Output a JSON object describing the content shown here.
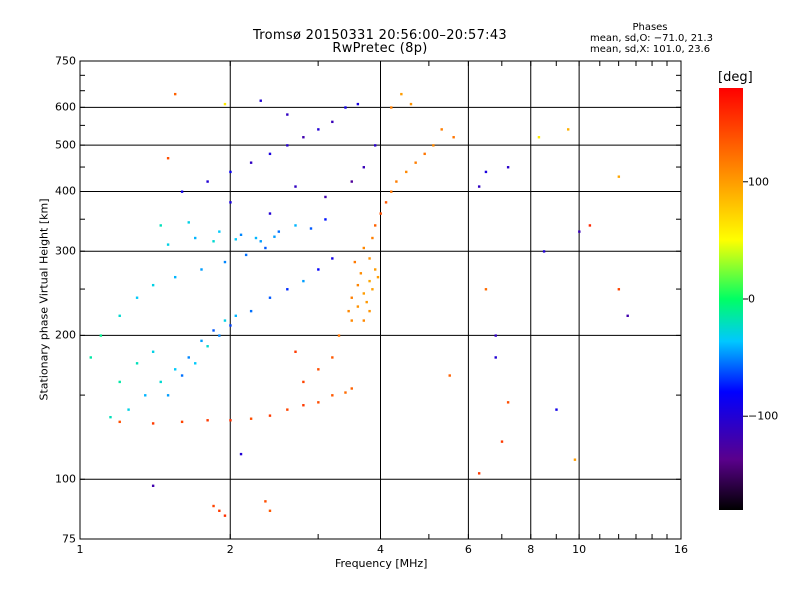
{
  "header": {
    "title_line1": "Tromsø 20150331 20:56:00–20:57:43",
    "title_line2": "RwPretec (8p)",
    "phase_title": "Phases",
    "phase_line1": "mean, sd,O: −71.0, 21.3",
    "phase_line2": "mean, sd,X: 101.0, 23.6"
  },
  "colorbar": {
    "unit_label": "[deg]",
    "tick_labels": [
      "100",
      "0",
      "−100"
    ],
    "tick_values": [
      100,
      0,
      -100
    ],
    "range": [
      -180,
      180
    ]
  },
  "chart_data": {
    "type": "scatter",
    "title": "Tromsø 20150331 20:56:00–20:57:43 RwPretec (8p)",
    "xlabel": "Frequency [MHz]",
    "ylabel": "Stationary phase Virtual Height [km]",
    "x_scale": "log",
    "y_scale": "log",
    "xlim": [
      1,
      16
    ],
    "ylim": [
      75,
      750
    ],
    "x_ticks": [
      1,
      2,
      4,
      6,
      8,
      10,
      16
    ],
    "x_tick_labels": [
      "1",
      "2",
      "4",
      "6",
      "8",
      "10",
      "16"
    ],
    "y_ticks": [
      75,
      100,
      200,
      300,
      400,
      500,
      600,
      750
    ],
    "y_tick_labels": [
      "75",
      "100",
      "200",
      "300",
      "400",
      "500",
      "600",
      "750"
    ],
    "x_gridlines": [
      2,
      4,
      6,
      8,
      10
    ],
    "y_gridlines": [
      100,
      200,
      300,
      400,
      500,
      600
    ],
    "color_variable": "phase [deg]",
    "series": [
      {
        "values": [
          [
            1.15,
            135,
            -20
          ],
          [
            1.25,
            140,
            -30
          ],
          [
            1.35,
            150,
            -40
          ],
          [
            1.45,
            160,
            -25
          ],
          [
            1.55,
            170,
            -35
          ],
          [
            1.65,
            180,
            -50
          ],
          [
            1.75,
            195,
            -45
          ],
          [
            1.85,
            205,
            -60
          ],
          [
            1.95,
            215,
            -30
          ],
          [
            2.05,
            220,
            -40
          ],
          [
            1.2,
            160,
            -15
          ],
          [
            1.3,
            175,
            -20
          ],
          [
            1.4,
            185,
            -30
          ],
          [
            1.5,
            150,
            -45
          ],
          [
            1.6,
            165,
            -55
          ],
          [
            1.7,
            175,
            -35
          ],
          [
            1.8,
            190,
            -25
          ],
          [
            1.9,
            200,
            -50
          ],
          [
            2.0,
            210,
            -65
          ],
          [
            2.2,
            225,
            -55
          ],
          [
            2.4,
            240,
            -60
          ],
          [
            2.6,
            250,
            -70
          ],
          [
            2.8,
            260,
            -45
          ],
          [
            3.0,
            275,
            -80
          ],
          [
            3.2,
            290,
            -90
          ],
          [
            1.5,
            310,
            -30
          ],
          [
            1.7,
            320,
            -40
          ],
          [
            1.9,
            330,
            -35
          ],
          [
            2.1,
            325,
            -50
          ],
          [
            2.3,
            315,
            -45
          ],
          [
            2.5,
            330,
            -55
          ],
          [
            2.7,
            340,
            -40
          ],
          [
            2.9,
            335,
            -60
          ],
          [
            3.1,
            350,
            -75
          ],
          [
            1.45,
            340,
            -20
          ],
          [
            1.65,
            345,
            -30
          ],
          [
            1.85,
            315,
            -25
          ],
          [
            2.05,
            318,
            -35
          ],
          [
            2.25,
            320,
            -40
          ],
          [
            2.45,
            322,
            -45
          ],
          [
            1.6,
            400,
            -90
          ],
          [
            1.8,
            420,
            -100
          ],
          [
            2.0,
            440,
            -85
          ],
          [
            2.2,
            460,
            -110
          ],
          [
            2.4,
            480,
            -95
          ],
          [
            2.6,
            500,
            -105
          ],
          [
            2.8,
            520,
            -120
          ],
          [
            3.0,
            540,
            -100
          ],
          [
            3.2,
            560,
            -115
          ],
          [
            3.4,
            600,
            -90
          ],
          [
            2.3,
            620,
            -100
          ],
          [
            2.6,
            580,
            -110
          ],
          [
            3.6,
            610,
            -95
          ],
          [
            3.9,
            500,
            -105
          ],
          [
            2.0,
            380,
            -95
          ],
          [
            2.4,
            360,
            -100
          ],
          [
            2.7,
            410,
            -110
          ],
          [
            3.1,
            390,
            -120
          ],
          [
            3.5,
            420,
            -130
          ],
          [
            3.7,
            450,
            -115
          ],
          [
            1.1,
            200,
            -10
          ],
          [
            1.05,
            180,
            -15
          ],
          [
            1.2,
            220,
            -25
          ],
          [
            1.3,
            240,
            -35
          ],
          [
            1.4,
            255,
            -30
          ],
          [
            1.55,
            265,
            -40
          ],
          [
            1.75,
            275,
            -45
          ],
          [
            1.95,
            285,
            -50
          ],
          [
            2.15,
            295,
            -55
          ],
          [
            2.35,
            305,
            -60
          ],
          [
            1.2,
            132,
            140
          ],
          [
            1.4,
            131,
            150
          ],
          [
            1.6,
            132,
            145
          ],
          [
            1.8,
            133,
            150
          ],
          [
            2.0,
            133,
            155
          ],
          [
            2.2,
            134,
            140
          ],
          [
            2.4,
            136,
            150
          ],
          [
            2.6,
            140,
            145
          ],
          [
            2.8,
            143,
            150
          ],
          [
            3.0,
            145,
            140
          ],
          [
            3.2,
            150,
            135
          ],
          [
            3.4,
            152,
            125
          ],
          [
            3.5,
            155,
            130
          ],
          [
            2.8,
            160,
            145
          ],
          [
            3.0,
            170,
            140
          ],
          [
            3.2,
            180,
            135
          ],
          [
            2.7,
            185,
            150
          ],
          [
            3.3,
            200,
            120
          ],
          [
            3.5,
            215,
            110
          ],
          [
            3.6,
            230,
            105
          ],
          [
            3.7,
            245,
            100
          ],
          [
            3.8,
            260,
            95
          ],
          [
            3.9,
            275,
            100
          ],
          [
            3.8,
            290,
            105
          ],
          [
            3.7,
            305,
            110
          ],
          [
            3.85,
            320,
            115
          ],
          [
            3.9,
            340,
            130
          ],
          [
            4.0,
            360,
            140
          ],
          [
            4.1,
            380,
            135
          ],
          [
            4.2,
            400,
            120
          ],
          [
            4.3,
            420,
            115
          ],
          [
            4.5,
            440,
            110
          ],
          [
            4.7,
            460,
            115
          ],
          [
            4.9,
            480,
            120
          ],
          [
            5.1,
            500,
            110
          ],
          [
            5.3,
            540,
            115
          ],
          [
            4.6,
            610,
            105
          ],
          [
            4.4,
            640,
            100
          ],
          [
            4.2,
            600,
            115
          ],
          [
            5.6,
            520,
            120
          ],
          [
            3.5,
            240,
            115
          ],
          [
            3.6,
            255,
            112
          ],
          [
            3.65,
            270,
            108
          ],
          [
            3.55,
            285,
            118
          ],
          [
            3.45,
            225,
            110
          ],
          [
            3.75,
            235,
            102
          ],
          [
            3.85,
            250,
            98
          ],
          [
            3.95,
            265,
            100
          ],
          [
            3.7,
            215,
            110
          ],
          [
            3.8,
            225,
            104
          ],
          [
            1.9,
            86,
            150
          ],
          [
            1.85,
            88,
            145
          ],
          [
            1.95,
            84,
            155
          ],
          [
            2.35,
            90,
            140
          ],
          [
            2.4,
            86,
            135
          ],
          [
            1.4,
            97,
            -120
          ],
          [
            2.1,
            113,
            -100
          ],
          [
            1.55,
            640,
            130
          ],
          [
            1.95,
            610,
            60
          ],
          [
            1.5,
            470,
            140
          ],
          [
            5.5,
            165,
            130
          ],
          [
            6.5,
            250,
            125
          ],
          [
            6.8,
            200,
            -110
          ],
          [
            7.0,
            120,
            150
          ],
          [
            7.2,
            145,
            140
          ],
          [
            8.5,
            300,
            -100
          ],
          [
            9.0,
            140,
            -90
          ],
          [
            10.0,
            330,
            -115
          ],
          [
            10.5,
            340,
            160
          ],
          [
            12.0,
            430,
            95
          ],
          [
            12.0,
            250,
            145
          ],
          [
            12.5,
            220,
            -120
          ],
          [
            9.5,
            540,
            90
          ],
          [
            8.3,
            520,
            60
          ],
          [
            6.8,
            180,
            -100
          ],
          [
            6.3,
            410,
            -110
          ],
          [
            6.5,
            440,
            -95
          ],
          [
            7.2,
            450,
            -105
          ],
          [
            9.8,
            110,
            100
          ],
          [
            6.3,
            103,
            150
          ]
        ]
      }
    ]
  }
}
